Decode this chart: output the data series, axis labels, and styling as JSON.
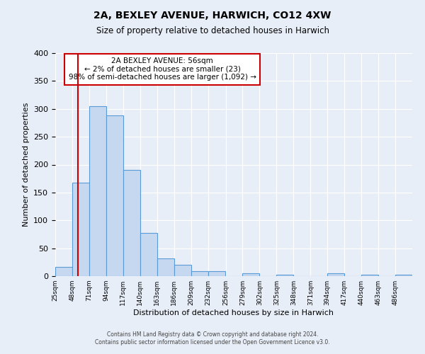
{
  "title": "2A, BEXLEY AVENUE, HARWICH, CO12 4XW",
  "subtitle": "Size of property relative to detached houses in Harwich",
  "xlabel": "Distribution of detached houses by size in Harwich",
  "ylabel": "Number of detached properties",
  "bin_labels": [
    "25sqm",
    "48sqm",
    "71sqm",
    "94sqm",
    "117sqm",
    "140sqm",
    "163sqm",
    "186sqm",
    "209sqm",
    "232sqm",
    "256sqm",
    "279sqm",
    "302sqm",
    "325sqm",
    "348sqm",
    "371sqm",
    "394sqm",
    "417sqm",
    "440sqm",
    "463sqm",
    "486sqm"
  ],
  "bin_edges": [
    25,
    48,
    71,
    94,
    117,
    140,
    163,
    186,
    209,
    232,
    256,
    279,
    302,
    325,
    348,
    371,
    394,
    417,
    440,
    463,
    486,
    509
  ],
  "bar_heights": [
    16,
    168,
    305,
    288,
    190,
    78,
    32,
    20,
    9,
    9,
    0,
    5,
    0,
    2,
    0,
    0,
    5,
    0,
    2,
    0,
    2
  ],
  "bar_color": "#c5d8f0",
  "bar_edge_color": "#5b9bd5",
  "property_line_x": 56,
  "property_line_color": "#cc0000",
  "annotation_title": "2A BEXLEY AVENUE: 56sqm",
  "annotation_line1": "← 2% of detached houses are smaller (23)",
  "annotation_line2": "98% of semi-detached houses are larger (1,092) →",
  "annotation_box_color": "#ffffff",
  "annotation_box_edge_color": "#cc0000",
  "ylim": [
    0,
    400
  ],
  "yticks": [
    0,
    50,
    100,
    150,
    200,
    250,
    300,
    350,
    400
  ],
  "background_color": "#e8eef7",
  "grid_color": "#ffffff",
  "footer_line1": "Contains HM Land Registry data © Crown copyright and database right 2024.",
  "footer_line2": "Contains public sector information licensed under the Open Government Licence v3.0."
}
